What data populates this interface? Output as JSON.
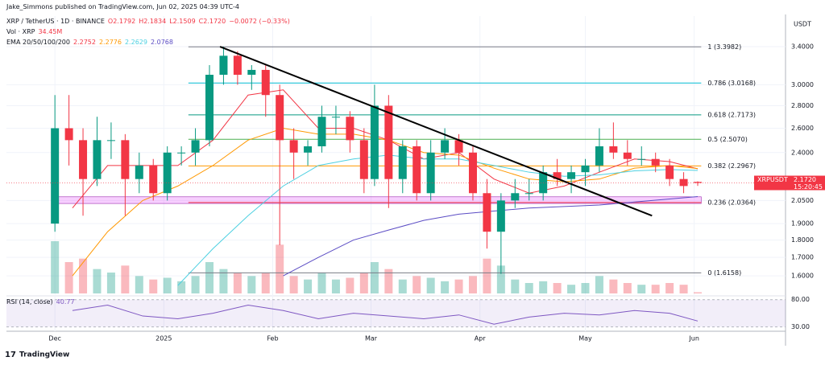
{
  "header": {
    "publisher": "Jake_Simmons published on TradingView.com, Jun 02, 2025 04:39 UTC-4",
    "symbol": "XRP / TetherUS · 1D · BINANCE",
    "ohlc": [
      "O2.1792",
      "H2.1834",
      "L2.1509",
      "C2.1720"
    ],
    "change": "−0.0072 (−0.33%)",
    "vol_label": "Vol · XRP",
    "vol_value": "34.45M"
  },
  "chart_data": {
    "type": "candlestick",
    "currency": "USDT",
    "log": true,
    "up_color": "#089981",
    "down_color": "#f23645",
    "x": [
      0,
      4,
      8,
      12,
      16,
      20,
      24,
      28,
      32,
      36,
      40,
      44,
      48,
      52,
      56,
      60,
      64,
      68,
      72,
      76,
      80,
      84,
      88,
      91,
      95,
      99,
      103,
      107,
      111,
      115,
      119,
      123,
      127,
      131,
      135,
      139,
      143,
      147,
      151,
      155,
      159,
      163,
      167,
      171,
      175,
      179,
      183
    ],
    "open": [
      1.9,
      2.6,
      2.5,
      2.2,
      2.5,
      2.5,
      2.2,
      2.3,
      2.1,
      2.4,
      2.4,
      2.5,
      3.1,
      3.3,
      3.1,
      3.15,
      2.9,
      2.5,
      2.4,
      2.45,
      2.7,
      2.7,
      2.5,
      2.2,
      2.8,
      2.2,
      2.45,
      2.1,
      2.4,
      2.5,
      2.4,
      2.1,
      1.85,
      2.05,
      2.1,
      2.1,
      2.25,
      2.2,
      2.25,
      2.3,
      2.45,
      2.4,
      2.35,
      2.35,
      2.3,
      2.2,
      2.1792
    ],
    "high": [
      2.9,
      2.9,
      2.6,
      2.7,
      2.65,
      2.55,
      2.4,
      2.35,
      2.45,
      2.45,
      2.6,
      3.2,
      3.4,
      3.35,
      3.2,
      3.2,
      3.0,
      2.6,
      2.5,
      2.8,
      2.8,
      2.75,
      2.6,
      3.0,
      2.9,
      2.5,
      2.5,
      2.5,
      2.6,
      2.55,
      2.45,
      2.2,
      2.1,
      2.2,
      2.2,
      2.3,
      2.35,
      2.3,
      2.35,
      2.6,
      2.65,
      2.5,
      2.45,
      2.4,
      2.35,
      2.25,
      2.1834
    ],
    "low": [
      1.85,
      2.3,
      1.95,
      2.15,
      2.35,
      1.95,
      2.1,
      2.05,
      2.05,
      2.3,
      2.3,
      2.45,
      3.0,
      3.0,
      2.95,
      2.7,
      1.77,
      2.2,
      2.3,
      2.4,
      2.55,
      2.4,
      2.1,
      2.15,
      2.0,
      2.1,
      2.05,
      2.05,
      2.35,
      2.3,
      2.05,
      1.75,
      1.61,
      2.0,
      2.05,
      2.05,
      2.15,
      2.1,
      2.15,
      2.25,
      2.35,
      2.3,
      2.3,
      2.25,
      2.15,
      2.1,
      2.1509
    ],
    "close": [
      2.6,
      2.5,
      2.2,
      2.5,
      2.5,
      2.2,
      2.3,
      2.1,
      2.4,
      2.4,
      2.5,
      3.1,
      3.3,
      3.1,
      3.15,
      2.9,
      2.5,
      2.4,
      2.45,
      2.7,
      2.7,
      2.5,
      2.2,
      2.8,
      2.2,
      2.45,
      2.1,
      2.4,
      2.5,
      2.4,
      2.1,
      1.85,
      2.05,
      2.1,
      2.1,
      2.25,
      2.2,
      2.25,
      2.3,
      2.45,
      2.4,
      2.35,
      2.35,
      2.3,
      2.2,
      2.15,
      2.172
    ],
    "volume": [
      1500,
      900,
      1000,
      700,
      600,
      800,
      500,
      400,
      450,
      350,
      500,
      900,
      700,
      600,
      500,
      600,
      1400,
      500,
      400,
      600,
      400,
      450,
      600,
      900,
      700,
      400,
      500,
      450,
      350,
      400,
      500,
      1000,
      800,
      400,
      300,
      350,
      300,
      250,
      300,
      500,
      400,
      300,
      250,
      250,
      300,
      250,
      34.45
    ],
    "xlim": [
      -13.8,
      208
    ],
    "xticks": [
      {
        "value": 0,
        "label": "Dec"
      },
      {
        "value": 31,
        "label": "2025"
      },
      {
        "value": 62,
        "label": "Feb"
      },
      {
        "value": 90,
        "label": "Mar"
      },
      {
        "value": 121,
        "label": "Apr"
      },
      {
        "value": 151,
        "label": "May"
      },
      {
        "value": 182,
        "label": "Jun"
      }
    ],
    "ylim": [
      1.51,
      3.76
    ],
    "yticks": [
      {
        "value": 1.6,
        "label": "1.6000"
      },
      {
        "value": 1.7,
        "label": "1.7000"
      },
      {
        "value": 1.8,
        "label": "1.8000"
      },
      {
        "value": 1.9,
        "label": "1.9000"
      },
      {
        "value": 2.05,
        "label": "2.0500"
      },
      {
        "value": 2.4,
        "label": "2.4000"
      },
      {
        "value": 2.6,
        "label": "2.6000"
      },
      {
        "value": 2.8,
        "label": "2.8000"
      },
      {
        "value": 3.0,
        "label": "3.0000"
      },
      {
        "value": 3.4,
        "label": "3.4000"
      }
    ],
    "ema": {
      "label": "EMA 20/50/100/200",
      "x": [
        5,
        15,
        25,
        35,
        45,
        55,
        65,
        75,
        85,
        95,
        105,
        115,
        125,
        135,
        145,
        155,
        165,
        175,
        183
      ],
      "series": [
        {
          "name": "20",
          "color": "#f23645",
          "values": [
            2.0,
            2.3,
            2.3,
            2.3,
            2.5,
            2.9,
            2.95,
            2.6,
            2.6,
            2.5,
            2.35,
            2.4,
            2.2,
            2.1,
            2.15,
            2.25,
            2.35,
            2.33,
            2.2752
          ]
        },
        {
          "name": "50",
          "color": "#ff9800",
          "values": [
            1.6,
            1.85,
            2.05,
            2.15,
            2.3,
            2.5,
            2.6,
            2.55,
            2.55,
            2.5,
            2.4,
            2.38,
            2.28,
            2.2,
            2.18,
            2.2,
            2.28,
            2.3,
            2.2776
          ]
        },
        {
          "name": "100",
          "color": "#4dd0e1",
          "values": [
            null,
            null,
            null,
            1.55,
            1.75,
            1.95,
            2.15,
            2.3,
            2.35,
            2.38,
            2.35,
            2.35,
            2.3,
            2.25,
            2.22,
            2.23,
            2.26,
            2.27,
            2.2629
          ]
        },
        {
          "name": "200",
          "color": "#5b4cc4",
          "values": [
            null,
            null,
            null,
            null,
            null,
            null,
            1.6,
            1.7,
            1.8,
            1.86,
            1.92,
            1.96,
            1.98,
            2.0,
            2.01,
            2.02,
            2.04,
            2.06,
            2.0768
          ]
        }
      ]
    },
    "fib": {
      "x": [
        38,
        184
      ],
      "levels": [
        {
          "label": "1 (3.3982)",
          "value": 3.3982,
          "color": "#787b86"
        },
        {
          "label": "0.786 (3.0168)",
          "value": 3.0168,
          "color": "#00bcd4"
        },
        {
          "label": "0.618 (2.7173)",
          "value": 2.7173,
          "color": "#089981"
        },
        {
          "label": "0.5 (2.5070)",
          "value": 2.507,
          "color": "#4caf50"
        },
        {
          "label": "0.382 (2.2967)",
          "value": 2.2967,
          "color": "#ff9800"
        },
        {
          "label": "0.236 (2.0364)",
          "value": 2.0364,
          "color": "#f23645"
        },
        {
          "label": "0 (1.6158)",
          "value": 1.6158,
          "color": "#787b86"
        }
      ]
    },
    "zone": {
      "x": [
        -0.5,
        184
      ],
      "y": [
        2.03,
        2.075
      ]
    },
    "trendline": {
      "x": [
        47,
        170
      ],
      "y": [
        3.4,
        1.95
      ]
    },
    "price_tag": {
      "symbol": "XRPUSDT",
      "price": "2.1720",
      "countdown": "15:20:45"
    },
    "rsi": {
      "label": "RSI (14, close)",
      "value_label": "40.77",
      "x": [
        5,
        15,
        25,
        35,
        45,
        55,
        65,
        75,
        85,
        95,
        105,
        115,
        125,
        135,
        145,
        155,
        165,
        175,
        183
      ],
      "values": [
        60,
        70,
        50,
        45,
        55,
        70,
        60,
        45,
        55,
        50,
        45,
        52,
        35,
        48,
        55,
        52,
        60,
        55,
        40.77
      ],
      "ylim": [
        25,
        84
      ],
      "yticks": [
        {
          "value": 80,
          "label": "80.00"
        },
        {
          "value": 30,
          "label": "30.00"
        }
      ]
    }
  },
  "footer": {
    "brand": "TradingView"
  }
}
